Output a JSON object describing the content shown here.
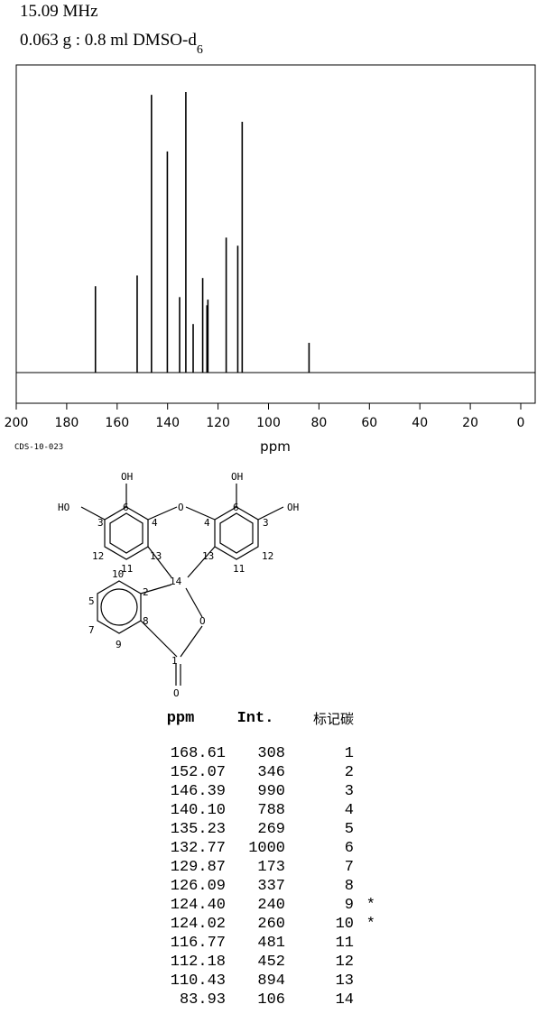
{
  "header": {
    "frequency": "15.09 MHz",
    "sample_main": "0.063 g : 0.8 ml DMSO-d",
    "sample_sub": "6"
  },
  "code": "CDS-10-023",
  "chart_data": {
    "type": "spectrum",
    "xlabel": "ppm",
    "xlim": [
      200,
      0
    ],
    "x_ticks": [
      200,
      180,
      160,
      140,
      120,
      100,
      80,
      60,
      40,
      20,
      0
    ],
    "peaks": [
      {
        "ppm": 168.61,
        "intensity": 308
      },
      {
        "ppm": 152.07,
        "intensity": 346
      },
      {
        "ppm": 146.39,
        "intensity": 990
      },
      {
        "ppm": 140.1,
        "intensity": 788
      },
      {
        "ppm": 135.23,
        "intensity": 269
      },
      {
        "ppm": 132.77,
        "intensity": 1000
      },
      {
        "ppm": 129.87,
        "intensity": 173
      },
      {
        "ppm": 126.09,
        "intensity": 337
      },
      {
        "ppm": 124.4,
        "intensity": 240
      },
      {
        "ppm": 124.02,
        "intensity": 260
      },
      {
        "ppm": 116.77,
        "intensity": 481
      },
      {
        "ppm": 112.18,
        "intensity": 452
      },
      {
        "ppm": 110.43,
        "intensity": 894
      },
      {
        "ppm": 83.93,
        "intensity": 106
      }
    ]
  },
  "structure_labels": [
    "OH",
    "HO",
    "OH",
    "OH",
    "O",
    "O",
    "O",
    "1",
    "2",
    "3",
    "4",
    "5",
    "6",
    "7",
    "8",
    "9",
    "10",
    "11",
    "12",
    "13",
    "14"
  ],
  "table": {
    "headers": [
      "ppm",
      "Int.",
      "标记碳"
    ],
    "rows": [
      {
        "ppm": "168.61",
        "int": "308",
        "num": "1",
        "star": ""
      },
      {
        "ppm": "152.07",
        "int": "346",
        "num": "2",
        "star": ""
      },
      {
        "ppm": "146.39",
        "int": "990",
        "num": "3",
        "star": ""
      },
      {
        "ppm": "140.10",
        "int": "788",
        "num": "4",
        "star": ""
      },
      {
        "ppm": "135.23",
        "int": "269",
        "num": "5",
        "star": ""
      },
      {
        "ppm": "132.77",
        "int": "1000",
        "num": "6",
        "star": ""
      },
      {
        "ppm": "129.87",
        "int": "173",
        "num": "7",
        "star": ""
      },
      {
        "ppm": "126.09",
        "int": "337",
        "num": "8",
        "star": ""
      },
      {
        "ppm": "124.40",
        "int": "240",
        "num": "9",
        "star": "*"
      },
      {
        "ppm": "124.02",
        "int": "260",
        "num": "10",
        "star": "*"
      },
      {
        "ppm": "116.77",
        "int": "481",
        "num": "11",
        "star": ""
      },
      {
        "ppm": "112.18",
        "int": "452",
        "num": "12",
        "star": ""
      },
      {
        "ppm": "110.43",
        "int": "894",
        "num": "13",
        "star": ""
      },
      {
        "ppm": "83.93",
        "int": "106",
        "num": "14",
        "star": ""
      }
    ]
  }
}
